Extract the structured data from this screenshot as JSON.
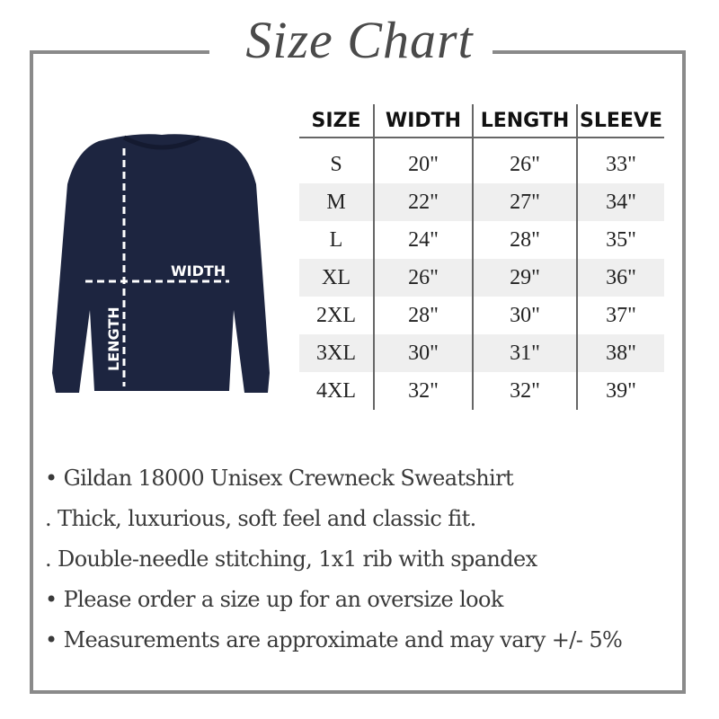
{
  "title": "Size Chart",
  "table": {
    "headers": [
      "SIZE",
      "WIDTH",
      "LENGTH",
      "SLEEVE"
    ],
    "rows": [
      [
        "S",
        "20\"",
        "26\"",
        "33\""
      ],
      [
        "M",
        "22\"",
        "27\"",
        "34\""
      ],
      [
        "L",
        "24\"",
        "28\"",
        "35\""
      ],
      [
        "XL",
        "26\"",
        "29\"",
        "36\""
      ],
      [
        "2XL",
        "28\"",
        "30\"",
        "37\""
      ],
      [
        "3XL",
        "30\"",
        "31\"",
        "38\""
      ],
      [
        "4XL",
        "32\"",
        "32\"",
        "39\""
      ]
    ]
  },
  "diagram": {
    "width_label": "WIDTH",
    "length_label": "LENGTH",
    "shirt_color": "#1d2540"
  },
  "bullets": [
    "• Gildan 18000 Unisex Crewneck Sweatshirt",
    ". Thick, luxurious, soft feel and classic fit.",
    ". Double-needle stitching, 1x1 rib with spandex",
    "• Please order a size up for an oversize look",
    "• Measurements are approximate and may vary +/- 5%"
  ]
}
